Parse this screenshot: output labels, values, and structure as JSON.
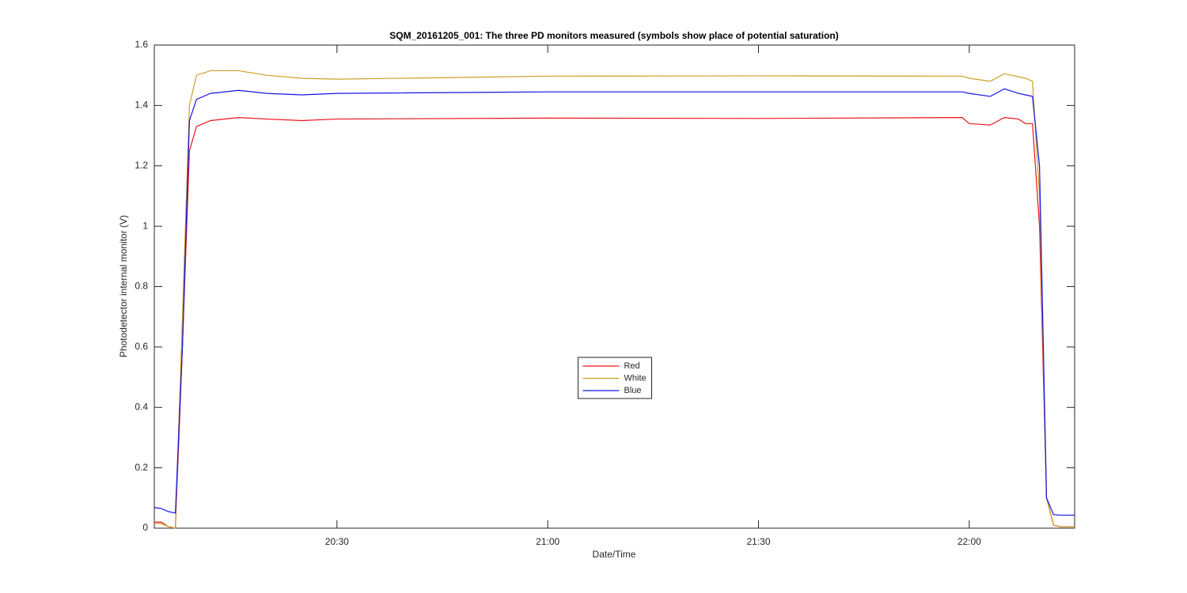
{
  "chart_data": {
    "type": "line",
    "title": "SQM_20161205_001: The three PD monitors measured (symbols show place of potential saturation)",
    "x_label": "Date/Time",
    "y_label": "Photodetector internal monitor (V)",
    "x": [
      "20:04",
      "20:05",
      "20:06",
      "20:07",
      "20:08",
      "20:09",
      "20:10",
      "20:12",
      "20:16",
      "20:20",
      "20:25",
      "20:30",
      "21:00",
      "21:30",
      "21:59",
      "22:00",
      "22:03",
      "22:05",
      "22:07",
      "22:08",
      "22:09",
      "22:10",
      "22:11",
      "22:12",
      "22:13",
      "22:15"
    ],
    "series": [
      {
        "name": "Red",
        "color": "#e8141c",
        "values": [
          0.02,
          0.02,
          0.005,
          0,
          0.6,
          1.25,
          1.33,
          1.35,
          1.36,
          1.355,
          1.35,
          1.355,
          1.358,
          1.357,
          1.36,
          1.34,
          1.335,
          1.36,
          1.355,
          1.34,
          1.34,
          1.0,
          0.1,
          0.01,
          0.005,
          0.005
        ]
      },
      {
        "name": "White",
        "color": "#c9a128",
        "values": [
          0.015,
          0.015,
          0.005,
          0,
          0.7,
          1.4,
          1.5,
          1.515,
          1.515,
          1.5,
          1.49,
          1.487,
          1.497,
          1.498,
          1.497,
          1.49,
          1.48,
          1.505,
          1.495,
          1.49,
          1.48,
          1.1,
          0.1,
          0.01,
          0.005,
          0.005
        ]
      },
      {
        "name": "Blue",
        "color": "#1414e6",
        "values": [
          0.068,
          0.065,
          0.055,
          0.05,
          0.6,
          1.35,
          1.42,
          1.44,
          1.45,
          1.44,
          1.435,
          1.44,
          1.445,
          1.445,
          1.445,
          1.44,
          1.43,
          1.455,
          1.44,
          1.435,
          1.43,
          1.2,
          0.1,
          0.045,
          0.043,
          0.043
        ]
      }
    ],
    "xlim": [
      "20:04",
      "22:15"
    ],
    "xticks": [
      "20:30",
      "21:00",
      "21:30",
      "22:00"
    ],
    "ylim": [
      0,
      1.6
    ],
    "yticks": [
      0,
      0.2,
      0.4,
      0.6,
      0.8,
      1,
      1.2,
      1.4,
      1.6
    ],
    "grid": false,
    "legend": "center"
  }
}
